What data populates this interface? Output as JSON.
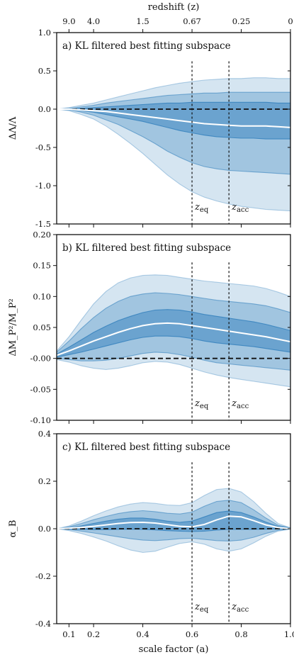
{
  "colors": {
    "band": "#2b7bba",
    "median": "#ffffff",
    "reference": "#111111"
  },
  "top_axis": {
    "label": "redshift (z)",
    "ticks": [
      {
        "label": "9.0",
        "a": 0.1
      },
      {
        "label": "4.0",
        "a": 0.2
      },
      {
        "label": "1.5",
        "a": 0.4
      },
      {
        "label": "0.67",
        "a": 0.6
      },
      {
        "label": "0.25",
        "a": 0.8
      },
      {
        "label": "0",
        "a": 1.0
      }
    ]
  },
  "chart_data": [
    {
      "type": "area",
      "title": "a) KL filtered best fitting subspace",
      "ylabel": "ΔΛ/Λ",
      "ylim": [
        -1.5,
        1.0
      ],
      "yticks": [
        -1.5,
        -1.0,
        -0.5,
        0.0,
        0.5,
        1.0
      ],
      "ytick_labels": [
        "-1.5",
        "-1.0",
        "-0.5",
        "0.0",
        "0.5",
        "1.0"
      ],
      "xlim": [
        0.05,
        1.0
      ],
      "reference_line": 0.0,
      "vlines": [
        {
          "label": "z_eq",
          "x": 0.6
        },
        {
          "label": "z_acc",
          "x": 0.75
        }
      ],
      "x": [
        0.05,
        0.1,
        0.15,
        0.2,
        0.25,
        0.3,
        0.35,
        0.4,
        0.45,
        0.5,
        0.55,
        0.6,
        0.65,
        0.7,
        0.75,
        0.8,
        0.85,
        0.9,
        0.95,
        1.0
      ],
      "median": [
        0,
        0,
        -0.01,
        -0.02,
        -0.03,
        -0.05,
        -0.07,
        -0.09,
        -0.11,
        -0.13,
        -0.15,
        -0.17,
        -0.19,
        -0.2,
        -0.21,
        -0.22,
        -0.22,
        -0.22,
        -0.23,
        -0.24
      ],
      "sigma1_upper": [
        0,
        0,
        0.01,
        0.02,
        0.03,
        0.04,
        0.05,
        0.06,
        0.07,
        0.08,
        0.08,
        0.09,
        0.09,
        0.09,
        0.09,
        0.09,
        0.09,
        0.09,
        0.08,
        0.08
      ],
      "sigma1_lower": [
        0,
        0,
        -0.02,
        -0.04,
        -0.07,
        -0.1,
        -0.13,
        -0.16,
        -0.2,
        -0.24,
        -0.28,
        -0.31,
        -0.34,
        -0.36,
        -0.37,
        -0.38,
        -0.38,
        -0.39,
        -0.39,
        -0.39
      ],
      "sigma2_upper": [
        0,
        0.01,
        0.03,
        0.05,
        0.08,
        0.1,
        0.12,
        0.14,
        0.16,
        0.18,
        0.19,
        0.2,
        0.21,
        0.21,
        0.22,
        0.22,
        0.22,
        0.22,
        0.22,
        0.22
      ],
      "sigma2_lower": [
        0,
        -0.01,
        -0.04,
        -0.08,
        -0.14,
        -0.2,
        -0.28,
        -0.36,
        -0.45,
        -0.55,
        -0.63,
        -0.7,
        -0.75,
        -0.78,
        -0.8,
        -0.81,
        -0.82,
        -0.83,
        -0.84,
        -0.85
      ],
      "sigma3_upper": [
        0,
        0.02,
        0.05,
        0.08,
        0.12,
        0.16,
        0.2,
        0.24,
        0.28,
        0.31,
        0.34,
        0.36,
        0.38,
        0.39,
        0.4,
        0.4,
        0.41,
        0.41,
        0.4,
        0.4
      ],
      "sigma3_lower": [
        0,
        -0.02,
        -0.07,
        -0.13,
        -0.22,
        -0.33,
        -0.45,
        -0.58,
        -0.72,
        -0.86,
        -0.98,
        -1.08,
        -1.15,
        -1.2,
        -1.24,
        -1.27,
        -1.29,
        -1.31,
        -1.32,
        -1.33
      ]
    },
    {
      "type": "area",
      "title": "b) KL filtered best fitting subspace",
      "ylabel": "ΔM_P²/M_P²",
      "ylim": [
        -0.1,
        0.2
      ],
      "yticks": [
        -0.1,
        -0.05,
        0.0,
        0.05,
        0.1,
        0.15,
        0.2
      ],
      "ytick_labels": [
        "-0.10",
        "-0.05",
        "-0.00",
        "0.05",
        "0.10",
        "0.15",
        "0.20"
      ],
      "xlim": [
        0.05,
        1.0
      ],
      "reference_line": 0.0,
      "vlines": [
        {
          "label": "z_eq",
          "x": 0.6
        },
        {
          "label": "z_acc",
          "x": 0.75
        }
      ],
      "x": [
        0.05,
        0.1,
        0.15,
        0.2,
        0.25,
        0.3,
        0.35,
        0.4,
        0.45,
        0.5,
        0.55,
        0.6,
        0.65,
        0.7,
        0.75,
        0.8,
        0.85,
        0.9,
        0.95,
        1.0
      ],
      "median": [
        0.005,
        0.012,
        0.02,
        0.028,
        0.035,
        0.042,
        0.048,
        0.053,
        0.056,
        0.057,
        0.056,
        0.053,
        0.05,
        0.047,
        0.044,
        0.041,
        0.038,
        0.035,
        0.031,
        0.027
      ],
      "sigma1_upper": [
        0.007,
        0.018,
        0.03,
        0.042,
        0.052,
        0.061,
        0.068,
        0.074,
        0.078,
        0.079,
        0.078,
        0.075,
        0.071,
        0.068,
        0.065,
        0.062,
        0.059,
        0.055,
        0.05,
        0.045
      ],
      "sigma1_lower": [
        0.002,
        0.006,
        0.01,
        0.015,
        0.02,
        0.025,
        0.03,
        0.034,
        0.036,
        0.036,
        0.035,
        0.032,
        0.028,
        0.025,
        0.023,
        0.021,
        0.019,
        0.016,
        0.013,
        0.01
      ],
      "sigma2_upper": [
        0.01,
        0.028,
        0.048,
        0.066,
        0.081,
        0.092,
        0.1,
        0.104,
        0.106,
        0.105,
        0.103,
        0.1,
        0.097,
        0.094,
        0.092,
        0.09,
        0.088,
        0.085,
        0.08,
        0.074
      ],
      "sigma2_lower": [
        0,
        -0.002,
        -0.004,
        -0.004,
        -0.003,
        0,
        0.004,
        0.008,
        0.01,
        0.009,
        0.006,
        0.002,
        -0.003,
        -0.007,
        -0.009,
        -0.011,
        -0.013,
        -0.015,
        -0.017,
        -0.019
      ],
      "sigma3_upper": [
        0.012,
        0.035,
        0.062,
        0.088,
        0.108,
        0.122,
        0.13,
        0.134,
        0.135,
        0.134,
        0.131,
        0.128,
        0.125,
        0.123,
        0.121,
        0.119,
        0.117,
        0.113,
        0.107,
        0.1
      ],
      "sigma3_lower": [
        -0.002,
        -0.006,
        -0.012,
        -0.016,
        -0.018,
        -0.016,
        -0.012,
        -0.007,
        -0.005,
        -0.006,
        -0.01,
        -0.016,
        -0.022,
        -0.027,
        -0.031,
        -0.034,
        -0.037,
        -0.04,
        -0.043,
        -0.046
      ]
    },
    {
      "type": "area",
      "title": "c) KL filtered best fitting subspace",
      "ylabel": "α_B",
      "xlabel": "scale factor (a)",
      "ylim": [
        -0.4,
        0.4
      ],
      "yticks": [
        -0.4,
        -0.2,
        0.0,
        0.2,
        0.4
      ],
      "ytick_labels": [
        "-0.4",
        "-0.2",
        "0.0",
        "0.2",
        "0.4"
      ],
      "xlim": [
        0.05,
        1.0
      ],
      "xticks": [
        0.1,
        0.2,
        0.4,
        0.6,
        0.8,
        1.0
      ],
      "xtick_labels": [
        "0.1",
        "0.2",
        "0.4",
        "0.6",
        "0.8",
        "1.0"
      ],
      "reference_line": 0.0,
      "vlines": [
        {
          "label": "z_eq",
          "x": 0.6
        },
        {
          "label": "z_acc",
          "x": 0.75
        }
      ],
      "x": [
        0.05,
        0.1,
        0.15,
        0.2,
        0.25,
        0.3,
        0.35,
        0.4,
        0.45,
        0.5,
        0.55,
        0.6,
        0.65,
        0.7,
        0.75,
        0.8,
        0.85,
        0.9,
        0.95,
        1.0
      ],
      "median": [
        0,
        0.002,
        0.005,
        0.01,
        0.016,
        0.022,
        0.026,
        0.027,
        0.024,
        0.017,
        0.01,
        0.008,
        0.018,
        0.037,
        0.053,
        0.05,
        0.034,
        0.016,
        0.005,
        0
      ],
      "sigma1_upper": [
        0,
        0.004,
        0.012,
        0.022,
        0.032,
        0.04,
        0.045,
        0.045,
        0.04,
        0.032,
        0.027,
        0.032,
        0.05,
        0.068,
        0.075,
        0.068,
        0.05,
        0.028,
        0.01,
        0.002
      ],
      "sigma1_lower": [
        0,
        -0.001,
        -0.003,
        -0.004,
        -0.004,
        -0.003,
        -0.002,
        -0.003,
        -0.005,
        -0.008,
        -0.01,
        -0.012,
        -0.01,
        -0.006,
        -0.003,
        -0.003,
        -0.003,
        -0.002,
        -0.001,
        0
      ],
      "sigma2_upper": [
        0,
        0.008,
        0.022,
        0.038,
        0.052,
        0.064,
        0.072,
        0.076,
        0.072,
        0.065,
        0.062,
        0.07,
        0.095,
        0.115,
        0.12,
        0.11,
        0.08,
        0.045,
        0.015,
        0.003
      ],
      "sigma2_lower": [
        0,
        -0.004,
        -0.01,
        -0.018,
        -0.026,
        -0.034,
        -0.042,
        -0.048,
        -0.05,
        -0.047,
        -0.042,
        -0.04,
        -0.045,
        -0.05,
        -0.052,
        -0.048,
        -0.036,
        -0.02,
        -0.007,
        -0.001
      ],
      "sigma3_upper": [
        0,
        0.012,
        0.032,
        0.055,
        0.075,
        0.092,
        0.104,
        0.11,
        0.107,
        0.1,
        0.098,
        0.11,
        0.14,
        0.165,
        0.17,
        0.155,
        0.115,
        0.065,
        0.022,
        0.004
      ],
      "sigma3_lower": [
        0,
        -0.008,
        -0.02,
        -0.035,
        -0.052,
        -0.072,
        -0.09,
        -0.1,
        -0.095,
        -0.078,
        -0.062,
        -0.055,
        -0.065,
        -0.085,
        -0.095,
        -0.085,
        -0.06,
        -0.032,
        -0.01,
        -0.002
      ]
    }
  ]
}
